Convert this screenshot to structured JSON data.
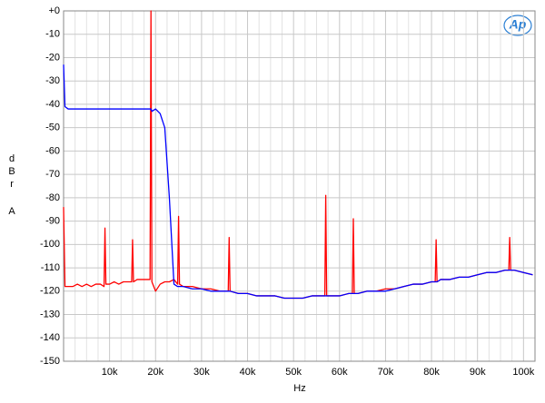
{
  "chart_data": {
    "type": "line",
    "x_label": "Hz",
    "y_label": "dBr",
    "y_label2": "A",
    "logo": "Ap",
    "xlim": [
      0,
      102500
    ],
    "ylim": [
      -150,
      0
    ],
    "xticks": [
      {
        "value": 10000,
        "label": "10k"
      },
      {
        "value": 20000,
        "label": "20k"
      },
      {
        "value": 30000,
        "label": "30k"
      },
      {
        "value": 40000,
        "label": "40k"
      },
      {
        "value": 50000,
        "label": "50k"
      },
      {
        "value": 60000,
        "label": "60k"
      },
      {
        "value": 70000,
        "label": "70k"
      },
      {
        "value": 80000,
        "label": "80k"
      },
      {
        "value": 90000,
        "label": "90k"
      },
      {
        "value": 100000,
        "label": "100k"
      }
    ],
    "yticks": [
      {
        "value": 0,
        "label": "+0"
      },
      -10,
      -20,
      -30,
      -40,
      -50,
      -60,
      -70,
      -80,
      -90,
      -100,
      -110,
      -120,
      -130,
      -140,
      -150
    ],
    "grid": true,
    "x": [
      0,
      300,
      1000,
      2000,
      3000,
      4000,
      5000,
      6000,
      7000,
      8000,
      8800,
      9000,
      9200,
      10000,
      11000,
      12000,
      13000,
      14000,
      14800,
      15000,
      15200,
      16000,
      17000,
      18000,
      18800,
      19000,
      19200,
      20000,
      21000,
      22000,
      23000,
      24000,
      24800,
      25000,
      25200,
      26000,
      28000,
      30000,
      32000,
      34000,
      35800,
      36000,
      36200,
      38000,
      40000,
      42000,
      44000,
      46000,
      48000,
      50000,
      52000,
      54000,
      56000,
      56800,
      57000,
      57200,
      58000,
      60000,
      62000,
      62800,
      63000,
      63200,
      64000,
      66000,
      68000,
      70000,
      72000,
      74000,
      76000,
      78000,
      80000,
      80800,
      81000,
      81200,
      82000,
      84000,
      86000,
      88000,
      90000,
      92000,
      94000,
      96000,
      96800,
      97000,
      97200,
      98000,
      100000,
      102000
    ],
    "series": [
      {
        "color": "#ff0000",
        "values": [
          -84,
          -118,
          -118,
          -118,
          -117,
          -118,
          -117,
          -118,
          -117,
          -117,
          -118,
          -93,
          -117,
          -117,
          -116,
          -117,
          -116,
          -116,
          -116,
          -98,
          -116,
          -115,
          -115,
          -115,
          -115,
          0,
          -116,
          -120,
          -117,
          -116,
          -116,
          -115,
          -117,
          -88,
          -117,
          -118,
          -118,
          -119,
          -119,
          -120,
          -120,
          -97,
          -120,
          -121,
          -121,
          -122,
          -122,
          -122,
          -123,
          -123,
          -123,
          -122,
          -122,
          -122,
          -79,
          -122,
          -122,
          -122,
          -121,
          -121,
          -89,
          -121,
          -121,
          -120,
          -120,
          -119,
          -119,
          -118,
          -117,
          -117,
          -116,
          -116,
          -98,
          -116,
          -115,
          -115,
          -114,
          -114,
          -113,
          -112,
          -112,
          -111,
          -111,
          -97,
          -111,
          -111,
          -112,
          -113
        ]
      },
      {
        "color": "#0000ff",
        "values": [
          -23,
          -41,
          -42,
          -42,
          -42,
          -42,
          -42,
          -42,
          -42,
          -42,
          -42,
          -42,
          -42,
          -42,
          -42,
          -42,
          -42,
          -42,
          -42,
          -42,
          -42,
          -42,
          -42,
          -42,
          -42,
          -42,
          -43,
          -42,
          -44,
          -50,
          -80,
          -117,
          -118,
          -118,
          -118,
          -118,
          -119,
          -119,
          -120,
          -120,
          -120,
          -120,
          -120,
          -121,
          -121,
          -122,
          -122,
          -122,
          -123,
          -123,
          -123,
          -122,
          -122,
          -122,
          -122,
          -122,
          -122,
          -122,
          -121,
          -121,
          -121,
          -121,
          -121,
          -120,
          -120,
          -120,
          -119,
          -118,
          -117,
          -117,
          -116,
          -116,
          -116,
          -116,
          -115,
          -115,
          -114,
          -114,
          -113,
          -112,
          -112,
          -111,
          -111,
          -111,
          -111,
          -111,
          -112,
          -113
        ]
      }
    ]
  }
}
